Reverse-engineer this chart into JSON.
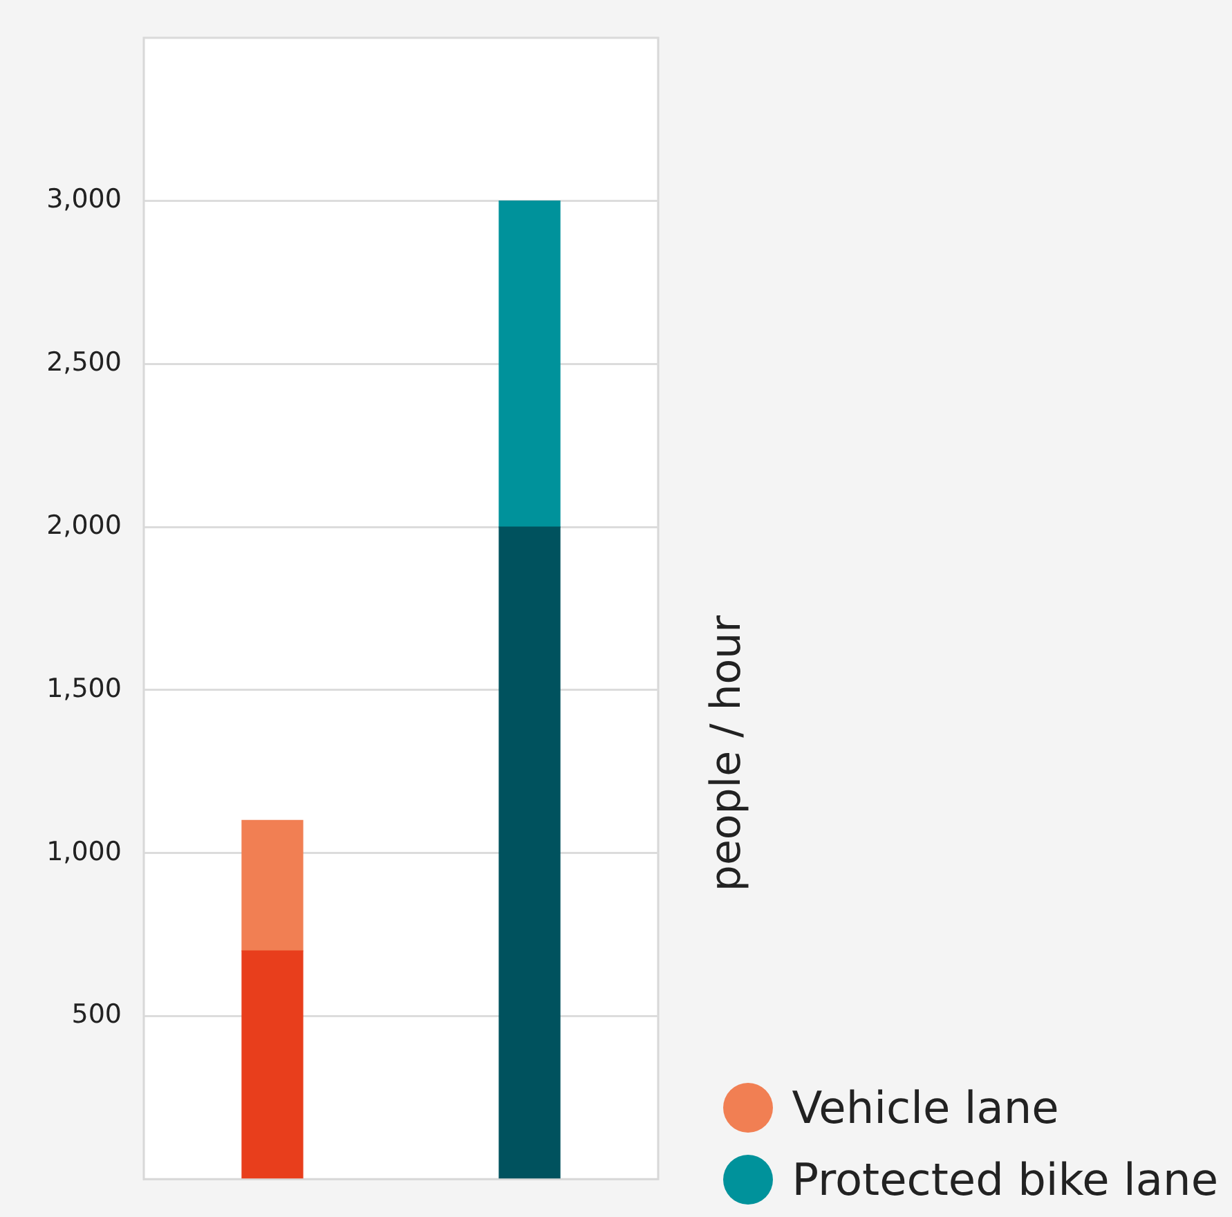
{
  "chart_data": {
    "type": "bar",
    "ylabel": "people / hour",
    "categories": [
      null,
      null
    ],
    "stacked": true,
    "series": [
      {
        "color": "#e83e1c",
        "values": [
          700,
          null
        ]
      },
      {
        "name": "Vehicle lane",
        "color": "#f17f53",
        "values": [
          400,
          null
        ]
      },
      {
        "color": "#00525e",
        "values": [
          null,
          2000
        ]
      },
      {
        "name": "Protected bike lane",
        "color": "#00929b",
        "values": [
          null,
          1000
        ]
      }
    ],
    "ylim": [
      0,
      3500
    ],
    "yticks": [
      {
        "value": 0,
        "label": null
      },
      {
        "value": 500,
        "label": "500"
      },
      {
        "value": 1000,
        "label": "1,000"
      },
      {
        "value": 1500,
        "label": "1,500"
      },
      {
        "value": 2000,
        "label": "2,000"
      },
      {
        "value": 2500,
        "label": "2,500"
      },
      {
        "value": 3000,
        "label": "3,000"
      },
      {
        "value": 3500,
        "label": null
      }
    ],
    "grid": "y",
    "legend": "bottom right",
    "tick_labels": "y"
  }
}
